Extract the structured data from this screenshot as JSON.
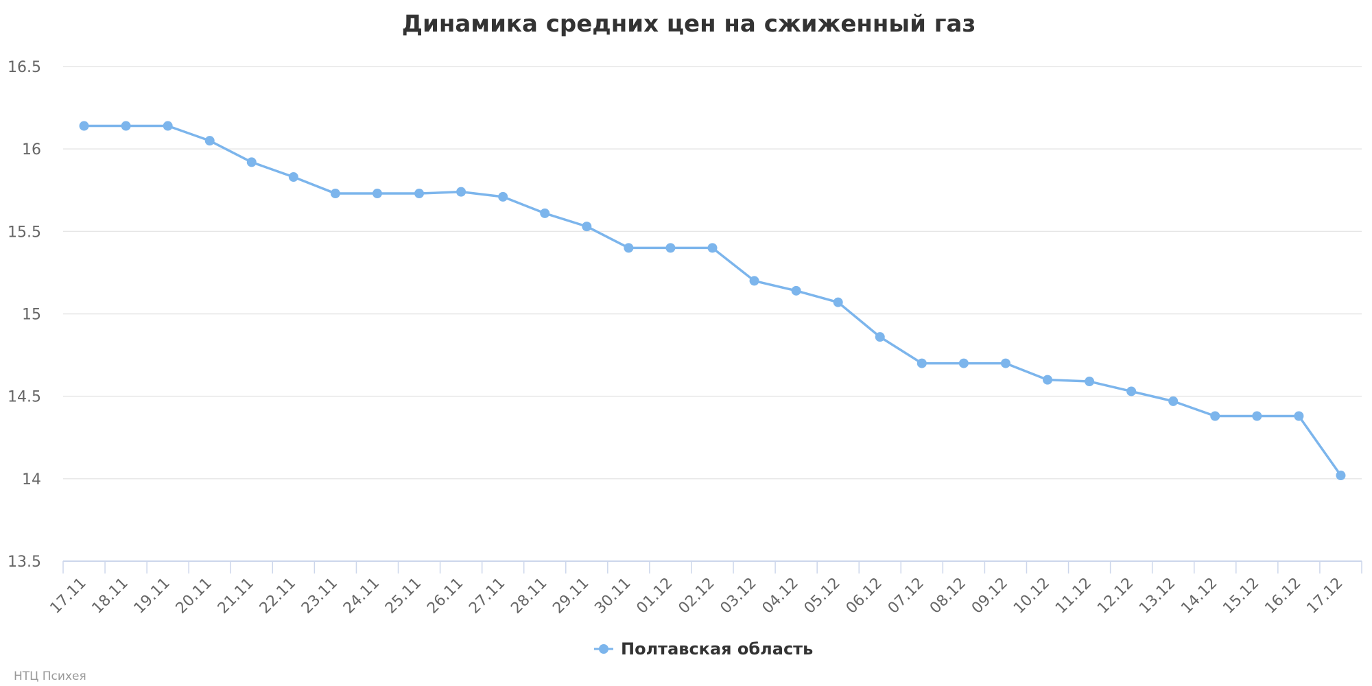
{
  "chart_data": {
    "type": "line",
    "title": "Динамика средних цен на сжиженный газ",
    "categories": [
      "17.11",
      "18.11",
      "19.11",
      "20.11",
      "21.11",
      "22.11",
      "23.11",
      "24.11",
      "25.11",
      "26.11",
      "27.11",
      "28.11",
      "29.11",
      "30.11",
      "01.12",
      "02.12",
      "03.12",
      "04.12",
      "05.12",
      "06.12",
      "07.12",
      "08.12",
      "09.12",
      "10.12",
      "11.12",
      "12.12",
      "13.12",
      "14.12",
      "15.12",
      "16.12",
      "17.12"
    ],
    "series": [
      {
        "name": "Полтавская область",
        "color": "#7cb5ec",
        "values": [
          16.14,
          16.14,
          16.14,
          16.05,
          15.92,
          15.83,
          15.73,
          15.73,
          15.73,
          15.74,
          15.71,
          15.61,
          15.53,
          15.4,
          15.4,
          15.4,
          15.2,
          15.14,
          15.07,
          14.86,
          14.7,
          14.7,
          14.7,
          14.6,
          14.59,
          14.53,
          14.47,
          14.38,
          14.38,
          14.38,
          14.02
        ]
      }
    ],
    "ylim": [
      13.5,
      16.5
    ],
    "yticks": [
      13.5,
      14,
      14.5,
      15,
      15.5,
      16,
      16.5
    ],
    "grid": true,
    "legend_position": "bottom-center"
  },
  "credits": "НТЦ Психея"
}
